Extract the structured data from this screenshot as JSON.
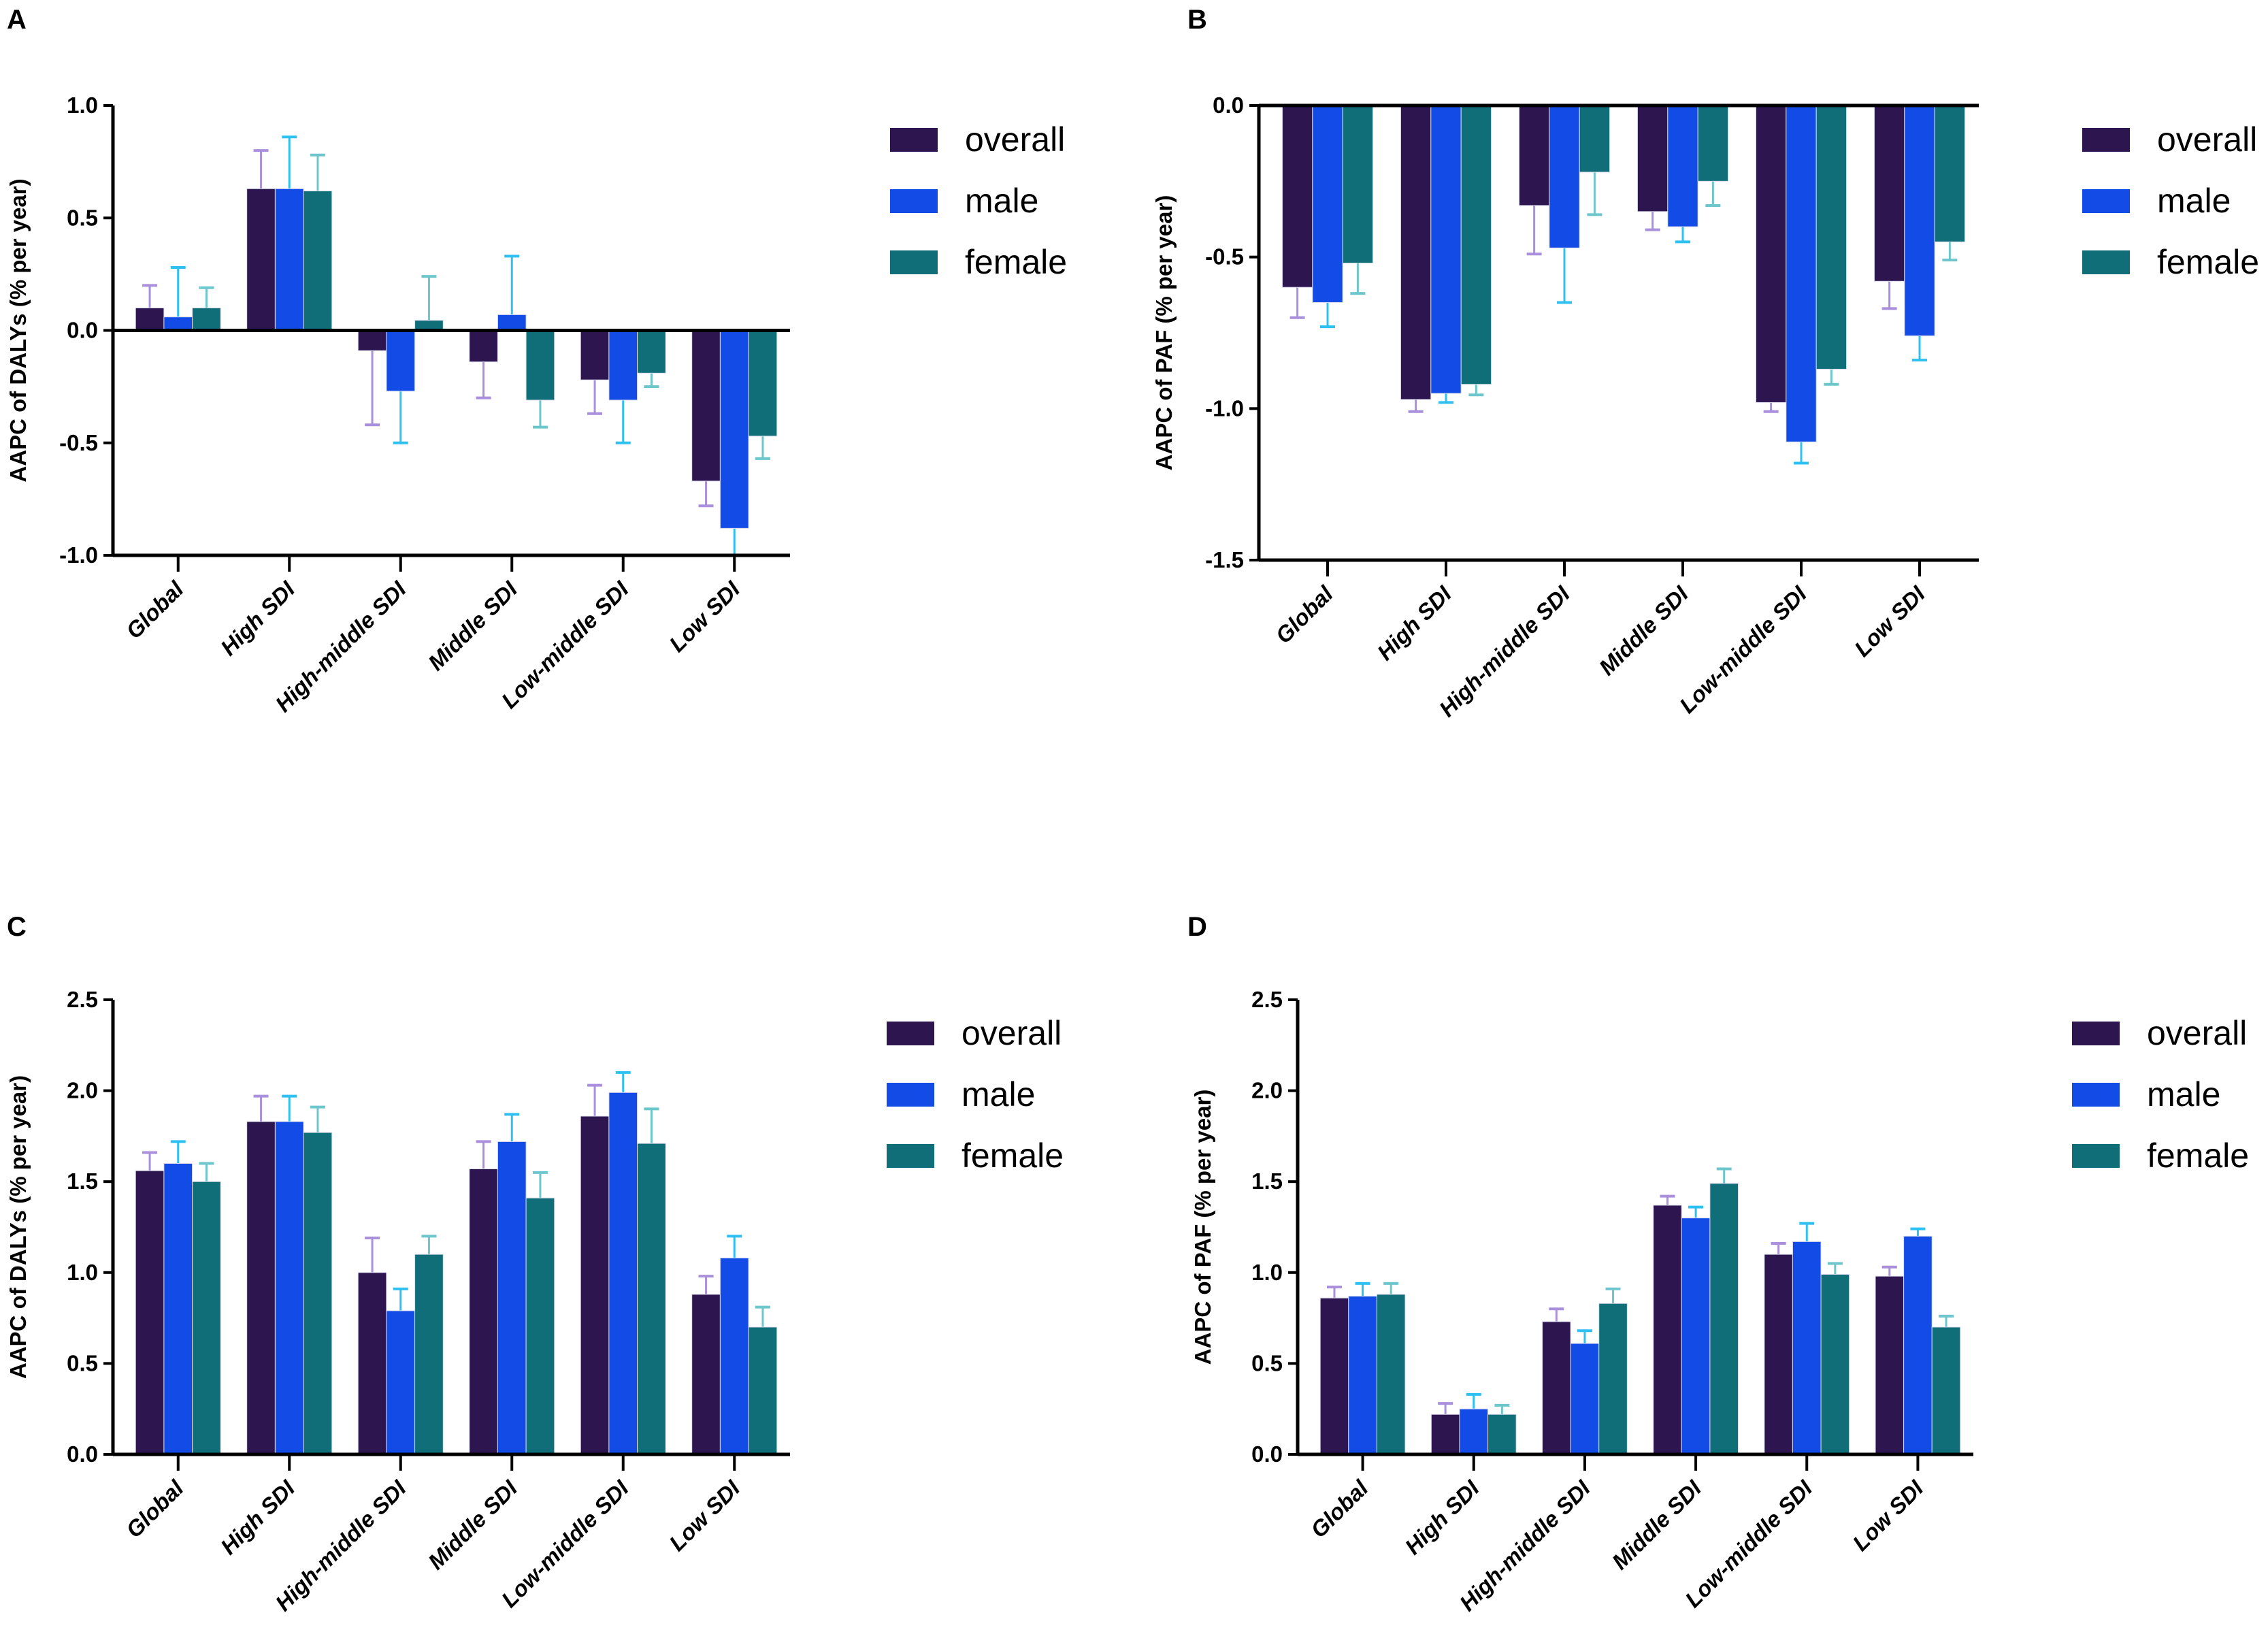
{
  "figure": {
    "colors": {
      "overall": "#2d1650",
      "male": "#134be6",
      "female": "#0f6e78",
      "err_overall": "#a98fdc",
      "err_male": "#2ec0f0",
      "err_female": "#6cc6cc"
    }
  },
  "chart_data": [
    {
      "panel": "A",
      "type": "bar",
      "title": "",
      "xlabel": "",
      "ylabel": "AAPC of DALYs (% per year)",
      "ylim": [
        -1.0,
        1.0
      ],
      "yticks": [
        "1.0",
        "0.5",
        "0.0",
        "-0.5",
        "-1.0"
      ],
      "ytick_values": [
        1.0,
        0.5,
        0.0,
        -0.5,
        -1.0
      ],
      "baseline": 0.0,
      "categories": [
        "Global",
        "High SDI",
        "High-middle SDI",
        "Middle SDI",
        "Low-middle SDI",
        "Low SDI"
      ],
      "legend": [
        "overall",
        "male",
        "female"
      ],
      "legend_position": "right",
      "series": [
        {
          "name": "overall",
          "values": [
            0.1,
            0.63,
            -0.09,
            -0.14,
            -0.22,
            -0.67
          ],
          "error_end": [
            0.2,
            0.8,
            -0.42,
            -0.3,
            -0.37,
            -0.78
          ]
        },
        {
          "name": "male",
          "values": [
            0.06,
            0.63,
            -0.27,
            0.07,
            -0.31,
            -0.88
          ],
          "error_end": [
            0.28,
            0.86,
            -0.5,
            0.33,
            -0.5,
            -1.0
          ]
        },
        {
          "name": "female",
          "values": [
            0.1,
            0.62,
            0.045,
            -0.31,
            -0.19,
            -0.47
          ],
          "error_end": [
            0.19,
            0.78,
            0.24,
            -0.43,
            -0.25,
            -0.57
          ]
        }
      ]
    },
    {
      "panel": "B",
      "type": "bar",
      "title": "",
      "xlabel": "",
      "ylabel": "AAPC of PAF (% per year)",
      "ylim": [
        -1.5,
        0.0
      ],
      "yticks": [
        "0.0",
        "-0.5",
        "-1.0",
        "-1.5"
      ],
      "ytick_values": [
        0.0,
        -0.5,
        -1.0,
        -1.5
      ],
      "baseline": 0.0,
      "categories": [
        "Global",
        "High SDI",
        "High-middle SDI",
        "Middle SDI",
        "Low-middle SDI",
        "Low SDI"
      ],
      "legend": [
        "overall",
        "male",
        "female"
      ],
      "legend_position": "right",
      "series": [
        {
          "name": "overall",
          "values": [
            -0.6,
            -0.97,
            -0.33,
            -0.35,
            -0.98,
            -0.58
          ],
          "error_end": [
            -0.7,
            -1.01,
            -0.49,
            -0.41,
            -1.01,
            -0.67
          ]
        },
        {
          "name": "male",
          "values": [
            -0.65,
            -0.95,
            -0.47,
            -0.4,
            -1.11,
            -0.76
          ],
          "error_end": [
            -0.73,
            -0.98,
            -0.65,
            -0.45,
            -1.18,
            -0.84
          ]
        },
        {
          "name": "female",
          "values": [
            -0.52,
            -0.92,
            -0.22,
            -0.25,
            -0.87,
            -0.45
          ],
          "error_end": [
            -0.62,
            -0.955,
            -0.36,
            -0.33,
            -0.92,
            -0.51
          ]
        }
      ]
    },
    {
      "panel": "C",
      "type": "bar",
      "title": "",
      "xlabel": "",
      "ylabel": "AAPC of DALYs (% per year)",
      "ylim": [
        0.0,
        2.5
      ],
      "yticks": [
        "2.5",
        "2.0",
        "1.5",
        "1.0",
        "0.5",
        "0.0"
      ],
      "ytick_values": [
        2.5,
        2.0,
        1.5,
        1.0,
        0.5,
        0.0
      ],
      "baseline": 0.0,
      "categories": [
        "Global",
        "High SDI",
        "High-middle SDI",
        "Middle SDI",
        "Low-middle SDI",
        "Low SDI"
      ],
      "legend": [
        "overall",
        "male",
        "female"
      ],
      "legend_position": "right",
      "series": [
        {
          "name": "overall",
          "values": [
            1.56,
            1.83,
            1.0,
            1.57,
            1.86,
            0.88
          ],
          "error_end": [
            1.66,
            1.97,
            1.19,
            1.72,
            2.03,
            0.98
          ]
        },
        {
          "name": "male",
          "values": [
            1.6,
            1.83,
            0.79,
            1.72,
            1.99,
            1.08
          ],
          "error_end": [
            1.72,
            1.97,
            0.91,
            1.87,
            2.1,
            1.2
          ]
        },
        {
          "name": "female",
          "values": [
            1.5,
            1.77,
            1.1,
            1.41,
            1.71,
            0.7
          ],
          "error_end": [
            1.6,
            1.91,
            1.2,
            1.55,
            1.9,
            0.81
          ]
        }
      ]
    },
    {
      "panel": "D",
      "type": "bar",
      "title": "",
      "xlabel": "",
      "ylabel": "AAPC of PAF (% per year)",
      "ylim": [
        0.0,
        2.5
      ],
      "yticks": [
        "2.5",
        "2.0",
        "1.5",
        "1.0",
        "0.5",
        "0.0"
      ],
      "ytick_values": [
        2.5,
        2.0,
        1.5,
        1.0,
        0.5,
        0.0
      ],
      "baseline": 0.0,
      "categories": [
        "Global",
        "High SDI",
        "High-middle SDI",
        "Middle SDI",
        "Low-middle SDI",
        "Low SDI"
      ],
      "legend": [
        "overall",
        "male",
        "female"
      ],
      "legend_position": "right",
      "series": [
        {
          "name": "overall",
          "values": [
            0.86,
            0.22,
            0.73,
            1.37,
            1.1,
            0.98
          ],
          "error_end": [
            0.92,
            0.28,
            0.8,
            1.42,
            1.16,
            1.03
          ]
        },
        {
          "name": "male",
          "values": [
            0.87,
            0.25,
            0.61,
            1.3,
            1.17,
            1.2
          ],
          "error_end": [
            0.94,
            0.33,
            0.68,
            1.36,
            1.27,
            1.24
          ]
        },
        {
          "name": "female",
          "values": [
            0.88,
            0.22,
            0.83,
            1.49,
            0.99,
            0.7
          ],
          "error_end": [
            0.94,
            0.27,
            0.91,
            1.57,
            1.05,
            0.76
          ]
        }
      ]
    }
  ]
}
